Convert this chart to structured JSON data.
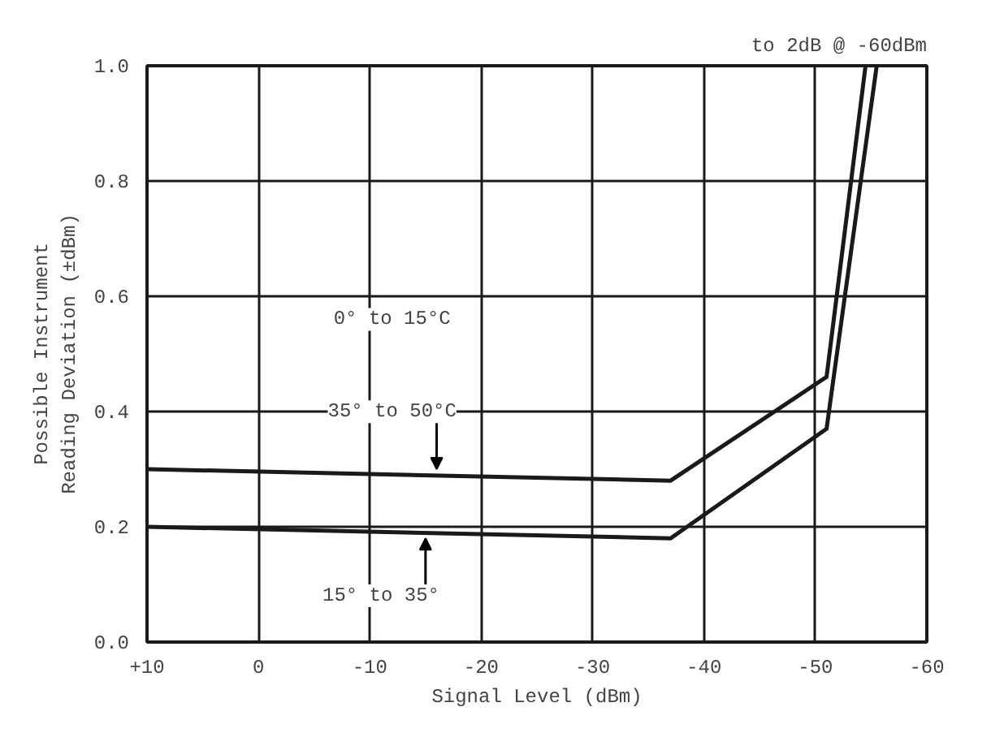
{
  "chart_data": {
    "type": "line",
    "xlabel": "Signal Level (dBm)",
    "ylabel": "Possible Instrument\nReading Deviation (±dBm)",
    "series": [
      {
        "color": "#1a1a1a",
        "x": [
          10,
          -37,
          -51,
          -54.5
        ],
        "values": [
          0.3,
          0.28,
          0.46,
          1.0
        ]
      },
      {
        "color": "#1a1a1a",
        "x": [
          10,
          -37,
          -51,
          -55.5
        ],
        "values": [
          0.2,
          0.18,
          0.37,
          1.0
        ]
      }
    ],
    "xlim": [
      10,
      -60
    ],
    "ylim": [
      0,
      1
    ],
    "xticks": [
      {
        "value": 10,
        "label": "+10"
      },
      0,
      -10,
      -20,
      -30,
      -40,
      -50,
      -60
    ],
    "yticks": [
      {
        "value": 0,
        "label": "0.0"
      },
      0.2,
      0.4,
      0.6,
      0.8,
      {
        "value": 1,
        "label": "1.0"
      }
    ],
    "grid": true,
    "marker": "none",
    "line_style": "solid",
    "annotations": [
      "to 2dB @ -60dBm",
      "0° to 15°C",
      {
        "text": "35° to 50°C",
        "x": -16,
        "y": 0.29
      },
      {
        "text": "15° to 35°",
        "x": -15,
        "y": 0.19
      }
    ]
  }
}
